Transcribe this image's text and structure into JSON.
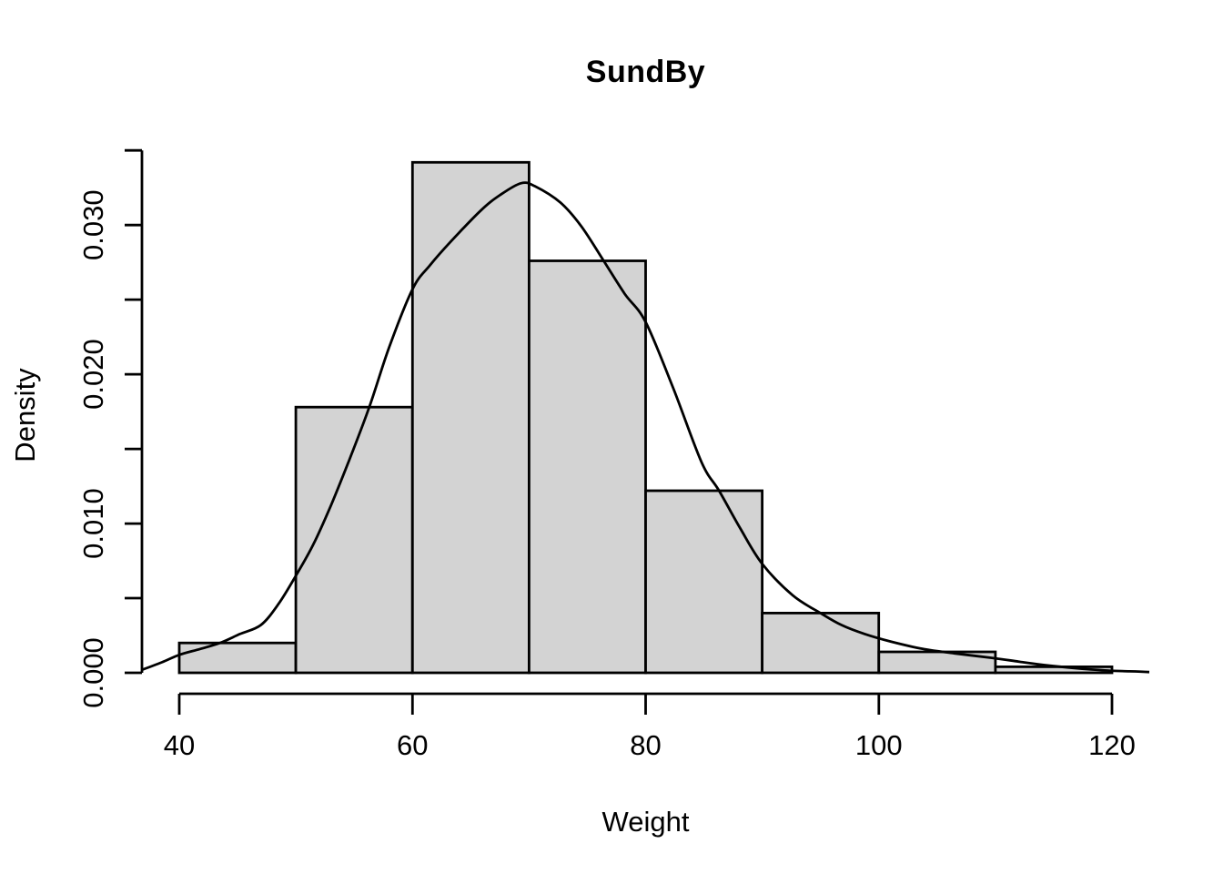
{
  "chart_data": {
    "type": "bar",
    "subtype": "histogram_with_density_curve",
    "title": "SundBy",
    "xlabel": "Weight",
    "ylabel": "Density",
    "grid": false,
    "legend": null,
    "colors": {
      "bar_fill": "#d3d3d3",
      "bar_border": "#000000",
      "curve": "#000000",
      "axis": "#000000",
      "text": "#000000",
      "background": "#ffffff"
    },
    "x_axis": {
      "range": [
        36.8,
        123.2
      ],
      "ticks": [
        40,
        60,
        80,
        100,
        120
      ],
      "labels": [
        "40",
        "60",
        "80",
        "100",
        "120"
      ]
    },
    "y_axis": {
      "range": [
        0,
        0.0355
      ],
      "ticks": [
        0,
        0.005,
        0.01,
        0.015,
        0.02,
        0.025,
        0.03,
        0.035
      ],
      "labeled_ticks": [
        0,
        0.01,
        0.02,
        0.03
      ],
      "labels": [
        "0.000",
        "0.010",
        "0.020",
        "0.030"
      ]
    },
    "bin_breaks": [
      40,
      50,
      60,
      70,
      80,
      90,
      100,
      110,
      120
    ],
    "bin_densities": [
      0.002,
      0.0178,
      0.0342,
      0.0276,
      0.0122,
      0.004,
      0.0014,
      0.0004
    ],
    "density_curve": [
      [
        36.8,
        0.0002
      ],
      [
        38.5,
        0.0007
      ],
      [
        40,
        0.0012
      ],
      [
        41.8,
        0.0016
      ],
      [
        43.5,
        0.002
      ],
      [
        45.2,
        0.0026
      ],
      [
        47,
        0.0032
      ],
      [
        48.5,
        0.0046
      ],
      [
        50,
        0.0065
      ],
      [
        51.5,
        0.0086
      ],
      [
        53,
        0.0112
      ],
      [
        54.6,
        0.0143
      ],
      [
        56.3,
        0.0178
      ],
      [
        58,
        0.0218
      ],
      [
        60,
        0.0257
      ],
      [
        61.5,
        0.0273
      ],
      [
        63.3,
        0.0289
      ],
      [
        65.9,
        0.031
      ],
      [
        67.5,
        0.032
      ],
      [
        69.3,
        0.0328
      ],
      [
        70.5,
        0.0326
      ],
      [
        72.7,
        0.0315
      ],
      [
        74.5,
        0.0299
      ],
      [
        76.4,
        0.0276
      ],
      [
        78.2,
        0.0254
      ],
      [
        80,
        0.0235
      ],
      [
        82.4,
        0.019
      ],
      [
        84.8,
        0.0141
      ],
      [
        86.3,
        0.0122
      ],
      [
        88.1,
        0.0097
      ],
      [
        90,
        0.0073
      ],
      [
        92.6,
        0.0052
      ],
      [
        95,
        0.004
      ],
      [
        96.8,
        0.0032
      ],
      [
        98.8,
        0.0026
      ],
      [
        101,
        0.0021
      ],
      [
        103.8,
        0.0016
      ],
      [
        106.5,
        0.0013
      ],
      [
        109.7,
        0.001
      ],
      [
        112,
        0.00075
      ],
      [
        114.4,
        0.0005
      ],
      [
        117,
        0.0003
      ],
      [
        119.6,
        0.00015
      ],
      [
        121.5,
        0.0001
      ],
      [
        123.2,
        5e-05
      ]
    ]
  }
}
